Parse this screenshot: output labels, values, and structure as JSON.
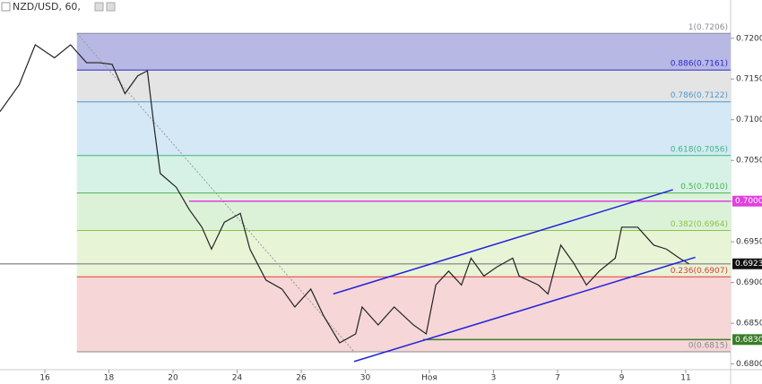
{
  "chart_data": {
    "type": "line",
    "title": "NZD/USD, 60,",
    "xlim": [
      -1.4,
      21.4
    ],
    "xticks": [
      {
        "value": 0,
        "label": "16"
      },
      {
        "value": 2,
        "label": "18"
      },
      {
        "value": 4,
        "label": "20"
      },
      {
        "value": 6,
        "label": "24"
      },
      {
        "value": 8,
        "label": "26"
      },
      {
        "value": 10,
        "label": "30"
      },
      {
        "value": 12,
        "label": "Ноя"
      },
      {
        "value": 14,
        "label": "3"
      },
      {
        "value": 16,
        "label": "7"
      },
      {
        "value": 18,
        "label": "9"
      },
      {
        "value": 20,
        "label": "11"
      }
    ],
    "ylim": [
      0.6793,
      0.7247
    ],
    "yticks": [
      {
        "value": 0.72,
        "label": "0.7200"
      },
      {
        "value": 0.715,
        "label": "0.7150"
      },
      {
        "value": 0.71,
        "label": "0.7100"
      },
      {
        "value": 0.705,
        "label": "0.7050"
      },
      {
        "value": 0.7,
        "label": "0.7000"
      },
      {
        "value": 0.695,
        "label": "0.6950"
      },
      {
        "value": 0.69,
        "label": "0.6900"
      },
      {
        "value": 0.685,
        "label": "0.6850"
      },
      {
        "value": 0.68,
        "label": "0.6800"
      }
    ],
    "series": [
      {
        "name": "NZD/USD",
        "color": "#222222",
        "x": [
          -1.4,
          -0.8,
          -0.3,
          0.3,
          0.8,
          1.3,
          1.7,
          2.1,
          2.5,
          2.9,
          3.2,
          3.4,
          3.6,
          4.1,
          4.5,
          4.9,
          5.2,
          5.6,
          6.1,
          6.4,
          6.9,
          7.4,
          7.8,
          8.3,
          8.7,
          9.2,
          9.7,
          9.9,
          10.4,
          10.9,
          11.5,
          11.9,
          12.2,
          12.6,
          13.0,
          13.3,
          13.7,
          14.1,
          14.6,
          14.8,
          15.4,
          15.7,
          16.1,
          16.5,
          16.9,
          17.3,
          17.8,
          18.0,
          18.5,
          19.0,
          19.4,
          19.8,
          20.1
        ],
        "values": [
          0.711,
          0.7143,
          0.7192,
          0.7176,
          0.7192,
          0.717,
          0.717,
          0.7168,
          0.7132,
          0.7154,
          0.716,
          0.7094,
          0.7034,
          0.7017,
          0.699,
          0.6968,
          0.6941,
          0.6974,
          0.6985,
          0.6941,
          0.6903,
          0.6892,
          0.687,
          0.6892,
          0.6859,
          0.6826,
          0.6837,
          0.687,
          0.6848,
          0.687,
          0.6848,
          0.6837,
          0.6897,
          0.6914,
          0.6897,
          0.693,
          0.6908,
          0.6919,
          0.693,
          0.6908,
          0.6897,
          0.6886,
          0.6946,
          0.6924,
          0.6897,
          0.6914,
          0.693,
          0.6968,
          0.6968,
          0.6946,
          0.6941,
          0.693,
          0.6923
        ]
      }
    ],
    "fib_start_x": 1.0,
    "fib_levels": [
      {
        "value": 0.7206,
        "label": "1(0.7206)",
        "color": "#8a8a9a",
        "band": "#b8b8e4"
      },
      {
        "value": 0.7161,
        "label": "0.886(0.7161)",
        "color": "#2a2ad0",
        "band": "#e4e4e4"
      },
      {
        "value": 0.7122,
        "label": "0.786(0.7122)",
        "color": "#4a9ad0",
        "band": "#d4e8f6"
      },
      {
        "value": 0.7056,
        "label": "0.618(0.7056)",
        "color": "#3cb878",
        "band": "#d6f2e6"
      },
      {
        "value": 0.701,
        "label": "0.5(0.7010)",
        "color": "#4caf50",
        "band": "#dcf2d8"
      },
      {
        "value": 0.6964,
        "label": "0.382(0.6964)",
        "color": "#8bc34a",
        "band": "#e8f4d6"
      },
      {
        "value": 0.6907,
        "label": "0.236(0.6907)",
        "color": "#e53935",
        "band": "#f6d6d6"
      },
      {
        "value": 0.6815,
        "label": "0(0.6815)",
        "color": "#8a8a8a",
        "band": null
      }
    ],
    "fib_trend": {
      "x": [
        1.0,
        9.65
      ],
      "y": [
        0.7206,
        0.6815
      ]
    },
    "channels": [
      {
        "color": "#2222dd",
        "x": [
          9.0,
          19.6
        ],
        "y": [
          0.6886,
          0.7014
        ]
      },
      {
        "color": "#2222dd",
        "x": [
          9.65,
          20.3
        ],
        "y": [
          0.6803,
          0.6931
        ]
      }
    ],
    "price_lines": [
      {
        "value": 0.7,
        "label": "0.7000",
        "color": "#e040e0",
        "x_start": 4.5
      },
      {
        "value": 0.683,
        "label": "0.6830",
        "color": "#3a7d2a",
        "x_start": 11.8
      },
      {
        "value": 0.6923,
        "label": "0.6923",
        "color": "#999999",
        "x_start": -1.4,
        "label_bg": "#111111"
      }
    ]
  }
}
